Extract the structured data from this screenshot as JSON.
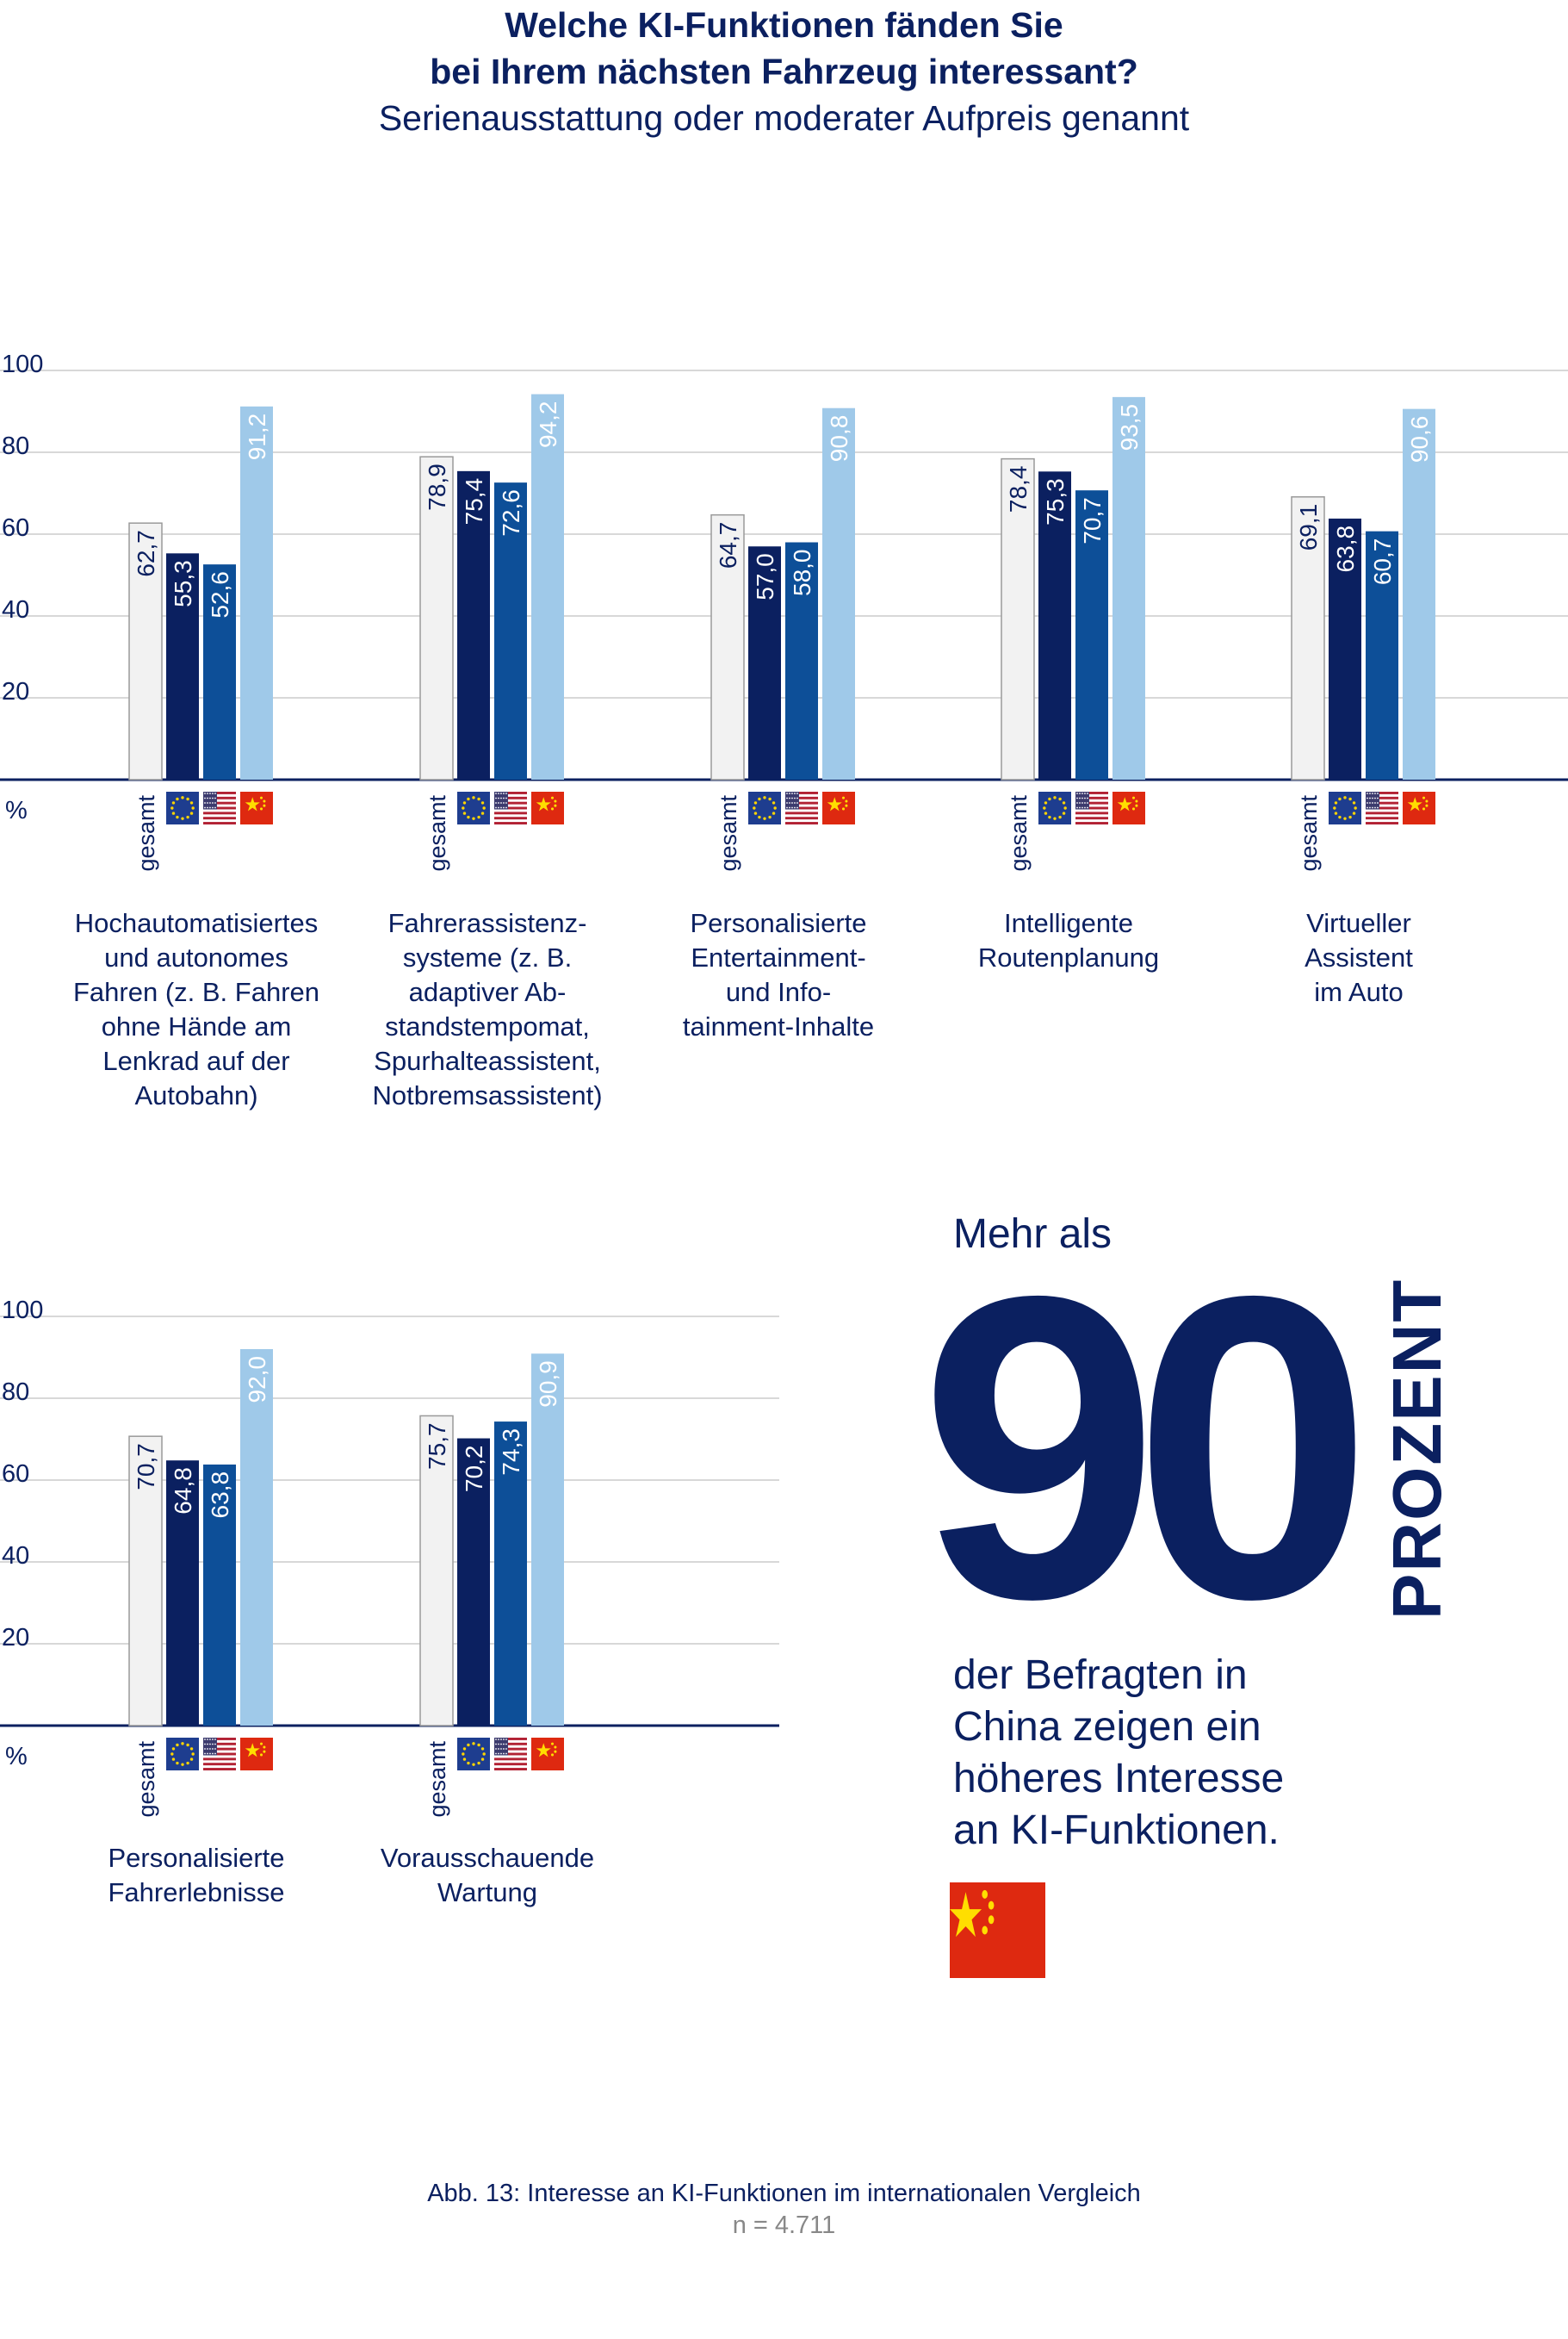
{
  "header": {
    "title_line1": "Welche KI-Funktionen fänden Sie",
    "title_line2": "bei Ihrem nächsten Fahrzeug interessant?",
    "subtitle": "Serienausstattung oder moderater Aufpreis genannt"
  },
  "colors": {
    "gesamt": "#f2f2f2",
    "europa": "#0b2060",
    "usa": "#0d4f98",
    "china": "#9fc9e9",
    "axis": "#0b2060",
    "grid": "#cccccc"
  },
  "chart_data": [
    {
      "type": "bar",
      "categories": [
        "Hochautomatisiertes\nund autonomes\nFahren (z. B. Fahren\nohne Hände am\nLenkrad auf der\nAutobahn)",
        "Fahrerassistenz-\nsysteme (z. B.\nadaptiver Ab-\nstandstempomat,\nSpurhalteassistent,\nNotbremsassistent)",
        "Personalisierte\nEntertainment-\nund Info-\ntainment-Inhalte",
        "Intelligente\nRoutenplanung",
        "Virtueller\nAssistent\nim Auto"
      ],
      "series": [
        {
          "name": "gesamt",
          "values": [
            62.7,
            78.9,
            64.7,
            78.4,
            69.1
          ]
        },
        {
          "values": [
            55.3,
            75.4,
            57.0,
            75.3,
            63.8
          ]
        },
        {
          "values": [
            52.6,
            72.6,
            58.0,
            70.7,
            60.7
          ]
        },
        {
          "values": [
            91.2,
            94.2,
            90.8,
            93.5,
            90.6
          ]
        }
      ],
      "value_labels": [
        [
          "62,7",
          "55,3",
          "52,6",
          "91,2"
        ],
        [
          "78,9",
          "75,4",
          "72,6",
          "94,2"
        ],
        [
          "64,7",
          "57,0",
          "58,0",
          "90,8"
        ],
        [
          "78,4",
          "75,3",
          "70,7",
          "93,5"
        ],
        [
          "69,1",
          "63,8",
          "60,7",
          "90,6"
        ]
      ],
      "series_icons": [
        "",
        "eu-flag-icon",
        "us-flag-icon",
        "china-flag-icon"
      ],
      "ylim": [
        0,
        100
      ],
      "yticks": [
        "20",
        "40",
        "60",
        "80",
        "100"
      ],
      "unit_label": "%",
      "grid": true
    },
    {
      "type": "bar",
      "categories": [
        "Personalisierte\nFahrerlebnisse",
        "Vorausschauende\nWartung"
      ],
      "series": [
        {
          "name": "gesamt",
          "values": [
            70.7,
            75.7
          ]
        },
        {
          "values": [
            64.8,
            70.2
          ]
        },
        {
          "values": [
            63.8,
            74.3
          ]
        },
        {
          "values": [
            92.0,
            90.9
          ]
        }
      ],
      "value_labels": [
        [
          "70,7",
          "64,8",
          "63,8",
          "92,0"
        ],
        [
          "75,7",
          "70,2",
          "74,3",
          "90,9"
        ]
      ],
      "series_icons": [
        "",
        "eu-flag-icon",
        "us-flag-icon",
        "china-flag-icon"
      ],
      "ylim": [
        0,
        100
      ],
      "yticks": [
        "20",
        "40",
        "60",
        "80",
        "100"
      ],
      "unit_label": "%",
      "grid": true
    }
  ],
  "callout": {
    "lead": "Mehr als",
    "number": "90",
    "unit": "PROZENT",
    "text_lines": [
      "der Befragten in",
      "China zeigen ein",
      "höheres Interesse",
      "an KI-Funktionen."
    ],
    "icon": "china-flag-icon"
  },
  "footer": {
    "caption": "Abb. 13: Interesse an KI-Funktionen im internationalen Vergleich",
    "sample": "n = 4.711"
  }
}
